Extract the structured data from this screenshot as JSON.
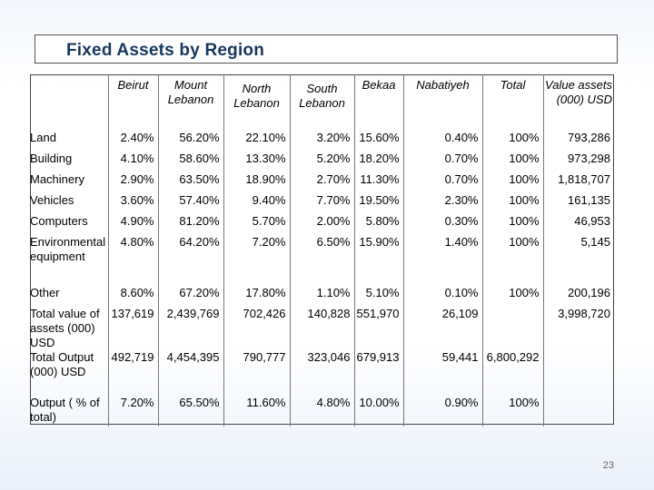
{
  "title": "Fixed Assets by Region",
  "page_number": "23",
  "columns": [
    "",
    "Beirut",
    "Mount Lebanon",
    "North Lebanon",
    "South Lebanon",
    "Bekaa",
    "Nabatiyeh",
    "Total",
    "Value assets (000) USD"
  ],
  "rows": [
    {
      "label": "Land",
      "cells": [
        "2.40%",
        "56.20%",
        "22.10%",
        "3.20%",
        "15.60%",
        "0.40%",
        "100%",
        "793,286"
      ]
    },
    {
      "label": "Building",
      "cells": [
        "4.10%",
        "58.60%",
        "13.30%",
        "5.20%",
        "18.20%",
        "0.70%",
        "100%",
        "973,298"
      ]
    },
    {
      "label": "Machinery",
      "cells": [
        "2.90%",
        "63.50%",
        "18.90%",
        "2.70%",
        "11.30%",
        "0.70%",
        "100%",
        "1,818,707"
      ]
    },
    {
      "label": "Vehicles",
      "cells": [
        "3.60%",
        "57.40%",
        "9.40%",
        "7.70%",
        "19.50%",
        "2.30%",
        "100%",
        "161,135"
      ]
    },
    {
      "label": "Computers",
      "cells": [
        "4.90%",
        "81.20%",
        "5.70%",
        "2.00%",
        "5.80%",
        "0.30%",
        "100%",
        "46,953"
      ]
    },
    {
      "label": "Environmental equipment",
      "cells": [
        "4.80%",
        "64.20%",
        "7.20%",
        "6.50%",
        "15.90%",
        "1.40%",
        "100%",
        "5,145"
      ]
    },
    {
      "label": "Other",
      "cells": [
        "8.60%",
        "67.20%",
        "17.80%",
        "1.10%",
        "5.10%",
        "0.10%",
        "100%",
        "200,196"
      ]
    },
    {
      "label": "Total value of assets (000) USD",
      "cells": [
        "137,619",
        "2,439,769",
        "702,426",
        "140,828",
        "551,970",
        "26,109",
        "",
        "3,998,720"
      ]
    },
    {
      "label": "Total Output (000) USD",
      "cells": [
        "492,719",
        "4,454,395",
        "790,777",
        "323,046",
        "679,913",
        "59,441",
        "6,800,292",
        ""
      ]
    },
    {
      "label": "Output ( % of total)",
      "cells": [
        "7.20%",
        "65.50%",
        "11.60%",
        "4.80%",
        "10.00%",
        "0.90%",
        "100%",
        ""
      ]
    }
  ]
}
